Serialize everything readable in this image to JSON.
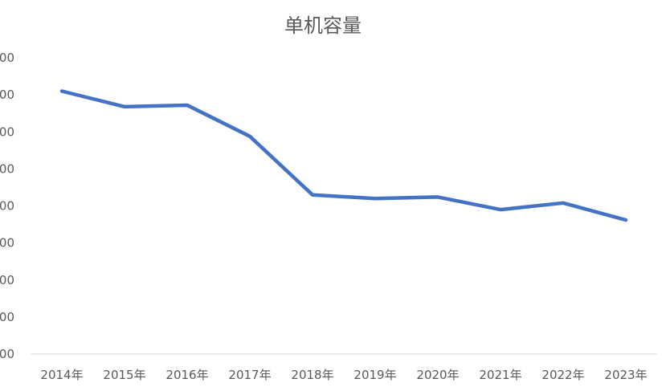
{
  "chart_data": {
    "type": "line",
    "title": "单机容量",
    "categories": [
      "2014年",
      "2015年",
      "2016年",
      "2017年",
      "2018年",
      "2019年",
      "2020年",
      "2021年",
      "2022年",
      "2023年"
    ],
    "y_tick_labels_visible": [
      "00",
      "00",
      "00",
      "00",
      "00",
      "00",
      "00",
      "00",
      "00"
    ],
    "series": [
      {
        "values": [
          7.1,
          6.68,
          6.72,
          5.88,
          4.3,
          4.2,
          4.24,
          3.9,
          4.08,
          3.62
        ]
      }
    ],
    "ylim": [
      0,
      8
    ],
    "grid": false,
    "line_color": "#4472C4",
    "axis_color": "#D9D9D9",
    "text_color": "#595959"
  }
}
